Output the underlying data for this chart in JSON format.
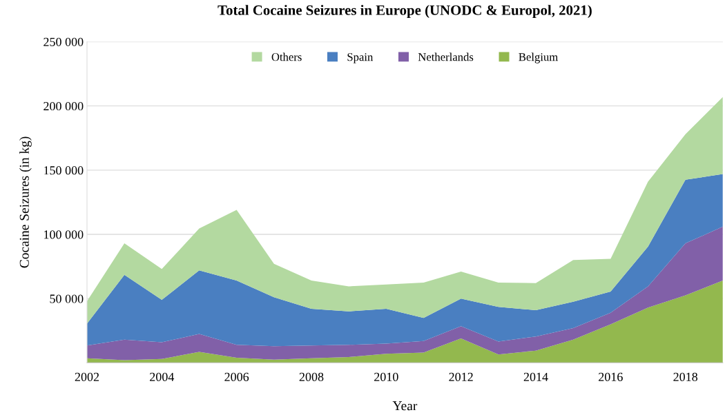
{
  "chart_data": {
    "type": "area",
    "stacked": true,
    "title": "Total Cocaine Seizures in Europe (UNODC & Europol, 2021)",
    "xlabel": "Year",
    "ylabel": "Cocaine Seizures (in kg)",
    "x": [
      2002,
      2003,
      2004,
      2005,
      2006,
      2007,
      2008,
      2009,
      2010,
      2011,
      2012,
      2013,
      2014,
      2015,
      2016,
      2017,
      2018,
      2019
    ],
    "series": [
      {
        "name": "Belgium",
        "color": "#93b84e",
        "values": [
          3500,
          2000,
          3000,
          8500,
          4000,
          2500,
          3500,
          4500,
          7000,
          8000,
          19000,
          6500,
          9500,
          18000,
          30000,
          43000,
          52500,
          64000
        ]
      },
      {
        "name": "Netherlands",
        "color": "#8160a8",
        "values": [
          10000,
          16000,
          13000,
          14000,
          10000,
          10500,
          10000,
          9500,
          8000,
          9000,
          9500,
          10000,
          11000,
          9000,
          9000,
          16500,
          40500,
          42000
        ]
      },
      {
        "name": "Spain",
        "color": "#4a7fc1",
        "values": [
          17000,
          50500,
          33000,
          49500,
          50000,
          38000,
          28500,
          26000,
          27000,
          18000,
          21500,
          27000,
          20500,
          20500,
          16500,
          31000,
          49500,
          41000
        ]
      },
      {
        "name": "Others",
        "color": "#b3d9a0",
        "values": [
          17500,
          24500,
          24000,
          32500,
          55000,
          26000,
          22000,
          19500,
          19000,
          27500,
          21000,
          19000,
          21000,
          32500,
          25500,
          50500,
          35500,
          60000
        ]
      }
    ],
    "xlim": [
      2002,
      2019
    ],
    "xticks": [
      2002,
      2004,
      2006,
      2008,
      2010,
      2012,
      2014,
      2016,
      2018
    ],
    "ylim": [
      0,
      250000
    ],
    "yticks": [
      {
        "value": 0,
        "label": null
      },
      {
        "value": 50000,
        "label": "50 000"
      },
      {
        "value": 100000,
        "label": "100 000"
      },
      {
        "value": 150000,
        "label": "150 000"
      },
      {
        "value": 200000,
        "label": "200 000"
      },
      {
        "value": 250000,
        "label": "250 000"
      }
    ],
    "grid": "y",
    "legend": "top"
  }
}
